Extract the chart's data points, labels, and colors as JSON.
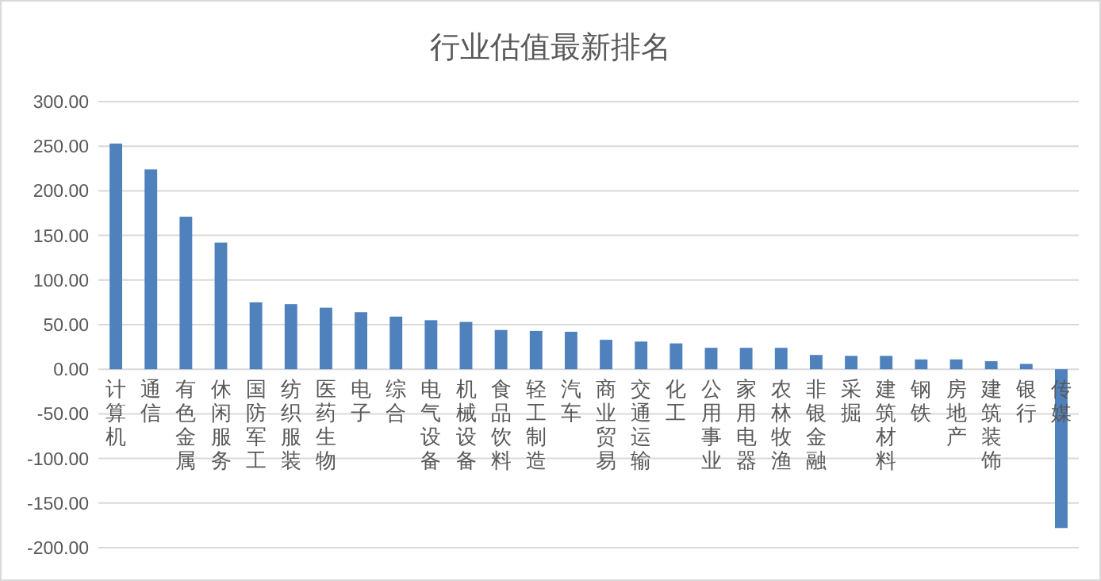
{
  "chart_data": {
    "type": "bar",
    "title": "行业估值最新排名",
    "categories": [
      "计算机",
      "通信",
      "有色金属",
      "休闲服务",
      "国防军工",
      "纺织服装",
      "医药生物",
      "电子",
      "综合",
      "电气设备",
      "机械设备",
      "食品饮料",
      "轻工制造",
      "汽车",
      "商业贸易",
      "交通运输",
      "化工",
      "公用事业",
      "家用电器",
      "农林牧渔",
      "非银金融",
      "采掘",
      "建筑材料",
      "钢铁",
      "房地产",
      "建筑装饰",
      "银行",
      "传媒"
    ],
    "values": [
      253,
      224,
      171,
      142,
      75,
      73,
      69,
      64,
      59,
      55,
      53,
      44,
      43,
      42,
      33,
      31,
      29,
      24,
      24,
      24,
      16,
      15,
      15,
      11,
      11,
      9,
      6,
      -178
    ],
    "color": "#4f81bd",
    "ylim": [
      -200,
      300
    ],
    "yticks": [
      {
        "value": -200,
        "label": "-200.00"
      },
      {
        "value": -150,
        "label": "-150.00"
      },
      {
        "value": -100,
        "label": "-100.00"
      },
      {
        "value": -50,
        "label": "-50.00"
      },
      {
        "value": 0,
        "label": "0.00"
      },
      {
        "value": 50,
        "label": "50.00"
      },
      {
        "value": 100,
        "label": "100.00"
      },
      {
        "value": 150,
        "label": "150.00"
      },
      {
        "value": 200,
        "label": "200.00"
      },
      {
        "value": 250,
        "label": "250.00"
      },
      {
        "value": 300,
        "label": "300.00"
      }
    ],
    "grid": "y"
  }
}
